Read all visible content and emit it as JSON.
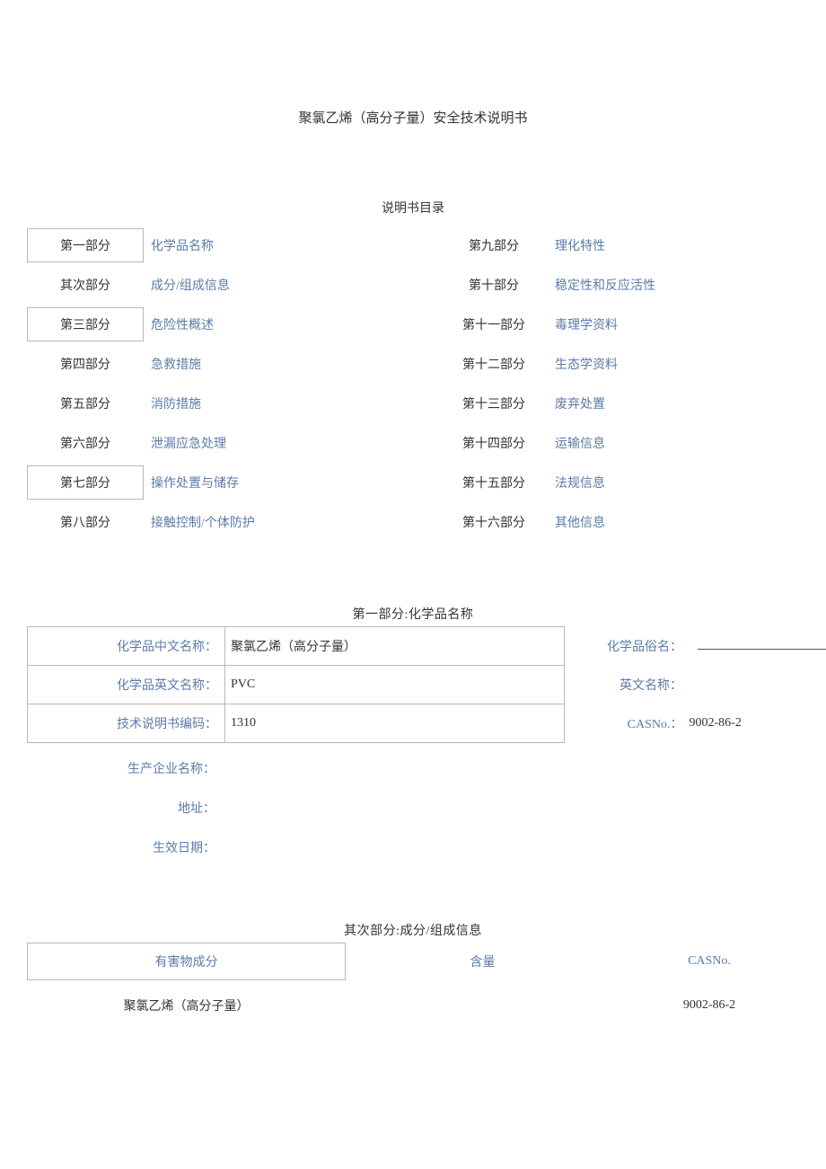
{
  "doc_title": "聚氯乙烯（高分子量）安全技术说明书",
  "toc_title": "说明书目录",
  "toc_left": [
    {
      "part": "第一部分",
      "label": "化学品名称",
      "boxed": true
    },
    {
      "part": "其次部分",
      "label": "成分/组成信息",
      "boxed": false
    },
    {
      "part": "第三部分",
      "label": "危险性概述",
      "boxed": true
    },
    {
      "part": "第四部分",
      "label": "急救措施",
      "boxed": false
    },
    {
      "part": "第五部分",
      "label": "消防措施",
      "boxed": false
    },
    {
      "part": "第六部分",
      "label": "泄漏应急处理",
      "boxed": false
    },
    {
      "part": "第七部分",
      "label": "操作处置与储存",
      "boxed": true
    },
    {
      "part": "第八部分",
      "label": "接触控制/个体防护",
      "boxed": false
    }
  ],
  "toc_right": [
    {
      "part": "第九部分",
      "label": "理化特性"
    },
    {
      "part": "第十部分",
      "label": "稳定性和反应活性"
    },
    {
      "part": "第十一部分",
      "label": "毒理学资料"
    },
    {
      "part": "第十二部分",
      "label": "生态学资料"
    },
    {
      "part": "第十三部分",
      "label": "废弃处置"
    },
    {
      "part": "第十四部分",
      "label": "运输信息"
    },
    {
      "part": "第十五部分",
      "label": "法规信息"
    },
    {
      "part": "第十六部分",
      "label": "其他信息"
    }
  ],
  "section1": {
    "title": "第一部分:化学品名称",
    "rows": [
      {
        "label_l": "化学品中文名称：",
        "val_l": "聚氯乙烯（高分子量）",
        "label_r": "化学品俗名：",
        "val_r": "",
        "underline": true
      },
      {
        "label_l": "化学品英文名称：",
        "val_l": "PVC",
        "label_r": "英文名称：",
        "val_r": ""
      },
      {
        "label_l": "技术说明书编码：",
        "val_l": "1310",
        "label_r": "CASNo.：",
        "val_r": "9002-86-2"
      }
    ],
    "extra_labels": [
      "生产企业名称：",
      "地址：",
      "生效日期："
    ]
  },
  "section2": {
    "title": "其次部分:成分/组成信息",
    "headers": {
      "h1": "有害物成分",
      "h2": "含量",
      "h3": "CASNo."
    },
    "row": {
      "c1": "聚氯乙烯（高分子量）",
      "c2": "",
      "c3": "9002-86-2"
    }
  },
  "colors": {
    "link": "#5b7ba8",
    "text": "#333333",
    "border": "#b8b8b8",
    "background": "#ffffff"
  }
}
